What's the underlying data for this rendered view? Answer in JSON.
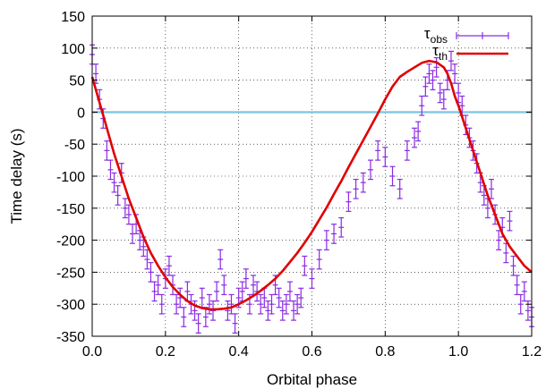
{
  "chart_data": {
    "type": "scatter",
    "xlabel": "Orbital phase",
    "ylabel": "Time delay (s)",
    "xlim": [
      0.0,
      1.2
    ],
    "ylim": [
      -350,
      150
    ],
    "xticks": [
      0.0,
      0.2,
      0.4,
      0.6,
      0.8,
      1.0,
      1.2
    ],
    "yticks": [
      -350,
      -300,
      -250,
      -200,
      -150,
      -100,
      -50,
      0,
      50,
      100,
      150
    ],
    "xtick_labels": [
      "0.0",
      "0.2",
      "0.4",
      "0.6",
      "0.8",
      "1.0",
      "1.2"
    ],
    "ytick_labels": [
      "-350",
      "-300",
      "-250",
      "-200",
      "-150",
      "-100",
      "-50",
      "0",
      "50",
      "100",
      "150"
    ],
    "grid": true,
    "legend": "top-right",
    "colors": {
      "observed": "#8a2be2",
      "theory": "#e00000",
      "zero_line": "#7ec8e3"
    },
    "reference_line": {
      "y": 0
    },
    "series": [
      {
        "name": "τobs",
        "legend_main": "τ",
        "legend_sub": "obs",
        "style": "errorbar-points",
        "x": [
          0.0,
          0.01,
          0.02,
          0.03,
          0.04,
          0.05,
          0.06,
          0.07,
          0.08,
          0.09,
          0.1,
          0.11,
          0.12,
          0.13,
          0.14,
          0.15,
          0.16,
          0.17,
          0.18,
          0.19,
          0.2,
          0.21,
          0.22,
          0.23,
          0.24,
          0.25,
          0.26,
          0.27,
          0.28,
          0.29,
          0.3,
          0.31,
          0.32,
          0.33,
          0.34,
          0.35,
          0.36,
          0.37,
          0.38,
          0.39,
          0.4,
          0.41,
          0.42,
          0.43,
          0.44,
          0.45,
          0.46,
          0.47,
          0.48,
          0.49,
          0.5,
          0.51,
          0.52,
          0.53,
          0.54,
          0.55,
          0.56,
          0.57,
          0.58,
          0.6,
          0.62,
          0.64,
          0.66,
          0.68,
          0.7,
          0.72,
          0.74,
          0.76,
          0.78,
          0.8,
          0.82,
          0.84,
          0.86,
          0.88,
          0.89,
          0.9,
          0.91,
          0.92,
          0.93,
          0.94,
          0.95,
          0.96,
          0.97,
          0.98,
          0.99,
          1.0,
          1.01,
          1.02,
          1.03,
          1.04,
          1.05,
          1.06,
          1.07,
          1.08,
          1.09,
          1.1,
          1.11,
          1.12,
          1.13,
          1.14,
          1.15,
          1.16,
          1.17,
          1.18,
          1.19,
          1.2
        ],
        "y": [
          90,
          60,
          20,
          -10,
          -60,
          -90,
          -110,
          -130,
          -95,
          -150,
          -160,
          -190,
          -175,
          -200,
          -210,
          -230,
          -250,
          -280,
          -270,
          -300,
          -260,
          -240,
          -270,
          -300,
          -290,
          -320,
          -280,
          -300,
          -310,
          -330,
          -290,
          -320,
          -300,
          -310,
          -280,
          -230,
          -270,
          -310,
          -300,
          -330,
          -290,
          -280,
          -260,
          -300,
          -270,
          -280,
          -300,
          -290,
          -310,
          -300,
          -270,
          -290,
          -310,
          -300,
          -280,
          -310,
          -300,
          -290,
          -240,
          -260,
          -230,
          -200,
          -190,
          -180,
          -140,
          -120,
          -110,
          -90,
          -60,
          -70,
          -100,
          -120,
          -60,
          -40,
          -30,
          10,
          40,
          60,
          50,
          70,
          30,
          20,
          50,
          80,
          60,
          30,
          10,
          -20,
          -40,
          -60,
          -80,
          -110,
          -130,
          -150,
          -120,
          -160,
          -200,
          -180,
          -220,
          -170,
          -240,
          -270,
          -300,
          -280,
          -310,
          -320
        ],
        "yerr": [
          15,
          15,
          15,
          15,
          15,
          15,
          15,
          15,
          15,
          15,
          15,
          15,
          15,
          15,
          15,
          15,
          15,
          15,
          15,
          15,
          15,
          15,
          15,
          15,
          15,
          15,
          15,
          15,
          15,
          15,
          15,
          15,
          15,
          15,
          15,
          15,
          15,
          15,
          15,
          15,
          15,
          15,
          15,
          15,
          15,
          15,
          15,
          15,
          15,
          15,
          15,
          15,
          15,
          15,
          15,
          15,
          15,
          15,
          15,
          15,
          15,
          15,
          15,
          15,
          15,
          15,
          15,
          15,
          15,
          15,
          15,
          15,
          15,
          15,
          15,
          15,
          15,
          15,
          15,
          15,
          15,
          15,
          15,
          15,
          15,
          15,
          15,
          15,
          15,
          15,
          15,
          15,
          15,
          15,
          15,
          15,
          15,
          15,
          15,
          15,
          15,
          15,
          15,
          15,
          15,
          15
        ]
      },
      {
        "name": "τth",
        "legend_main": "τ",
        "legend_sub": "th",
        "style": "line",
        "x": [
          0.0,
          0.02,
          0.04,
          0.06,
          0.08,
          0.1,
          0.12,
          0.14,
          0.16,
          0.18,
          0.2,
          0.22,
          0.24,
          0.26,
          0.28,
          0.3,
          0.32,
          0.34,
          0.36,
          0.38,
          0.4,
          0.42,
          0.44,
          0.46,
          0.48,
          0.5,
          0.52,
          0.54,
          0.56,
          0.58,
          0.6,
          0.62,
          0.64,
          0.66,
          0.68,
          0.7,
          0.72,
          0.74,
          0.76,
          0.78,
          0.8,
          0.82,
          0.84,
          0.86,
          0.88,
          0.9,
          0.92,
          0.94,
          0.96,
          0.97,
          0.98,
          0.99,
          1.0,
          1.02,
          1.04,
          1.06,
          1.08,
          1.1,
          1.12,
          1.14,
          1.16,
          1.18,
          1.2
        ],
        "y": [
          55,
          15,
          -25,
          -65,
          -100,
          -135,
          -165,
          -195,
          -220,
          -240,
          -258,
          -273,
          -285,
          -295,
          -302,
          -306,
          -308,
          -308,
          -307,
          -305,
          -300,
          -294,
          -287,
          -279,
          -270,
          -260,
          -248,
          -234,
          -220,
          -204,
          -187,
          -168,
          -149,
          -128,
          -108,
          -86,
          -65,
          -44,
          -23,
          -2,
          20,
          40,
          55,
          63,
          70,
          77,
          80,
          78,
          70,
          60,
          45,
          25,
          10,
          -25,
          -60,
          -95,
          -130,
          -160,
          -190,
          -210,
          -225,
          -240,
          -250
        ]
      }
    ]
  }
}
